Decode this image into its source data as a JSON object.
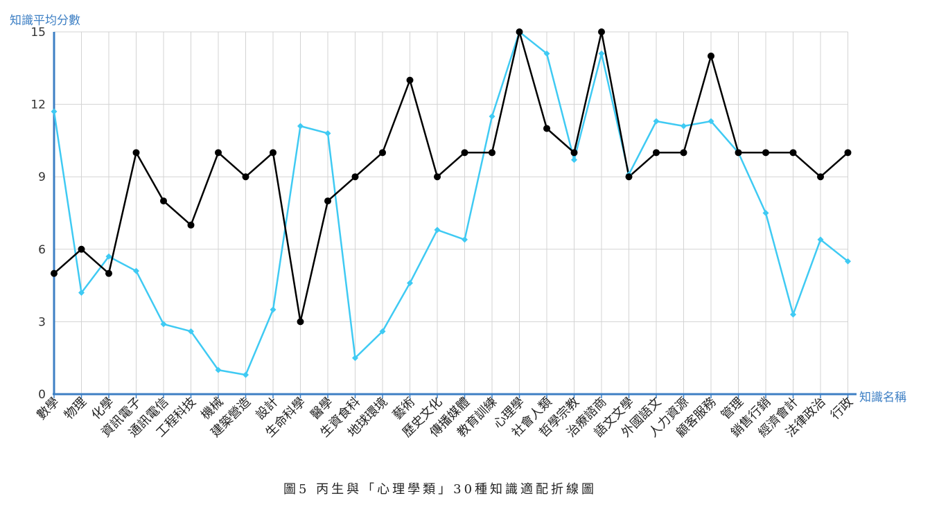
{
  "chart_data": {
    "type": "line",
    "ylabel": "知識平均分數",
    "xlabel": "知識名稱",
    "ylim": [
      0,
      15
    ],
    "yticks": [
      0,
      3,
      6,
      9,
      12,
      15
    ],
    "grid": true,
    "categories": [
      "數學",
      "物理",
      "化學",
      "資訊電子",
      "通訊電信",
      "工程科技",
      "機械",
      "建築營造",
      "設計",
      "生命科學",
      "醫學",
      "生資食科",
      "地球環境",
      "藝術",
      "歷史文化",
      "傳播媒體",
      "教育訓練",
      "心理學",
      "社會人類",
      "哲學宗教",
      "治療諮商",
      "語文文學",
      "外國語文",
      "人力資源",
      "顧客服務",
      "管理",
      "銷售行銷",
      "經濟會計",
      "法律政治",
      "行政"
    ],
    "series": [
      {
        "color": "#000000",
        "marker": "circle",
        "values": [
          5,
          6,
          5,
          10,
          8,
          7,
          10,
          9,
          10,
          3,
          8,
          9,
          10,
          13,
          9,
          10,
          10,
          15,
          11,
          10,
          15,
          9,
          10,
          10,
          14,
          10,
          10,
          10,
          9,
          10
        ]
      },
      {
        "color": "#3fcaf3",
        "marker": "diamond",
        "values": [
          11.7,
          4.2,
          5.7,
          5.1,
          2.9,
          2.6,
          1.0,
          0.8,
          3.5,
          11.1,
          10.8,
          1.5,
          2.6,
          4.6,
          6.8,
          6.4,
          11.5,
          15,
          14.1,
          9.7,
          14.1,
          9.1,
          11.3,
          11.1,
          11.3,
          10.0,
          7.5,
          3.3,
          6.4,
          5.5
        ]
      }
    ]
  },
  "caption": "圖5 丙生與「心理學類」30種知識適配折線圖",
  "colors": {
    "axis": "#3d7fc4",
    "grid": "#d3d3d3"
  }
}
